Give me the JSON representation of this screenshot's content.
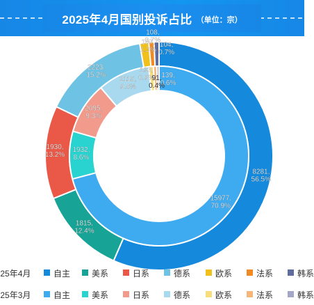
{
  "header": {
    "title": "2025年4月国别投诉占比",
    "subtitle": "（单位：宗）"
  },
  "legend": {
    "rows": [
      {
        "label": "2025年4月",
        "items": [
          {
            "name": "自主",
            "color": "#1589dc"
          },
          {
            "name": "美系",
            "color": "#17a497"
          },
          {
            "name": "日系",
            "color": "#ea5947"
          },
          {
            "name": "德系",
            "color": "#6ec2e3"
          },
          {
            "name": "欧系",
            "color": "#f2c01a"
          },
          {
            "name": "法系",
            "color": "#ef8b22"
          },
          {
            "name": "韩系",
            "color": "#5f6c9e"
          }
        ]
      },
      {
        "label": "2025年3月",
        "items": [
          {
            "name": "自主",
            "color": "#3eaaf0"
          },
          {
            "name": "美系",
            "color": "#29d3d0"
          },
          {
            "name": "日系",
            "color": "#f29b8c"
          },
          {
            "name": "德系",
            "color": "#a9d9ee"
          },
          {
            "name": "欧系",
            "color": "#f7de7b"
          },
          {
            "name": "法系",
            "color": "#f6b679"
          },
          {
            "name": "韩系",
            "color": "#a3a6c6"
          }
        ]
      }
    ]
  },
  "chart_data": {
    "type": "pie",
    "subtype": "nested-donut",
    "categories": [
      "自主",
      "美系",
      "日系",
      "德系",
      "欧系",
      "法系",
      "韩系"
    ],
    "series": [
      {
        "name": "2025年4月",
        "ring": "outer",
        "values": [
          8281,
          1815,
          1930,
          2223,
          187,
          108,
          104
        ],
        "labels": [
          "8281,\n56.5%",
          "1815,\n12.4%",
          "1930,\n13.2%",
          "2223,\n15.2%",
          "187,\n1.3%",
          "108,\n0.7%",
          "104,\n0.7%"
        ],
        "colors": [
          "#1589dc",
          "#17a497",
          "#ea5947",
          "#6ec2e3",
          "#f2c01a",
          "#ef8b22",
          "#5f6c9e"
        ]
      },
      {
        "name": "2025年3月",
        "ring": "inner",
        "values": [
          15977,
          1932,
          2095,
          2115,
          193,
          139,
          91
        ],
        "labels": [
          "15977,\n70.9%",
          "1932,\n8.6%",
          "2095,\n9.3%",
          "2115,\n9.4%",
          "193,\n0.9%",
          "139,\n0.6%",
          "91,\n0.4%"
        ],
        "colors": [
          "#3eaaf0",
          "#29d3d0",
          "#f29b8c",
          "#a9d9ee",
          "#f7de7b",
          "#f6b679",
          "#a3a6c6"
        ]
      }
    ],
    "legend_position": "bottom"
  }
}
